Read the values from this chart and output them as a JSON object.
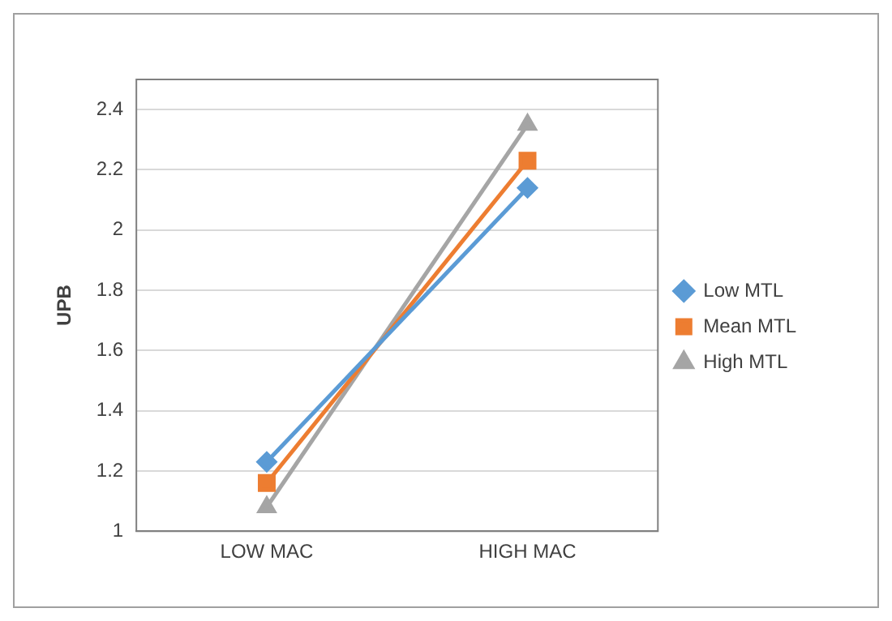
{
  "chart_data": {
    "type": "line",
    "ylabel": "UPB",
    "categories": [
      "LOW MAC",
      "HIGH MAC"
    ],
    "series": [
      {
        "name": "Low MTL",
        "color": "#5b9bd5",
        "values": [
          1.23,
          2.14
        ],
        "marker": "diamond"
      },
      {
        "name": "Mean MTL",
        "color": "#ed7d31",
        "values": [
          1.16,
          2.23
        ],
        "marker": "square"
      },
      {
        "name": "High MTL",
        "color": "#a5a5a5",
        "values": [
          1.08,
          2.35
        ],
        "marker": "triangle"
      }
    ],
    "ylim": [
      1,
      2.5
    ],
    "yticks": [
      1,
      1.2,
      1.4,
      1.6,
      1.8,
      2,
      2.2,
      2.4
    ],
    "grid": "y",
    "legend": "right",
    "line_style": "solid"
  }
}
